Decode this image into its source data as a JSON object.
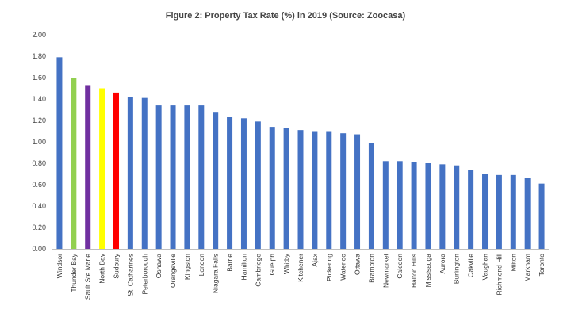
{
  "chart_data": {
    "type": "bar",
    "title": "Figure 2: Property Tax Rate (%) in 2019 (Source: Zoocasa)",
    "xlabel": "",
    "ylabel": "",
    "ylim": [
      0,
      2.0
    ],
    "yticks": [
      "0.00",
      "0.20",
      "0.40",
      "0.60",
      "0.80",
      "1.00",
      "1.20",
      "1.40",
      "1.60",
      "1.80",
      "2.00"
    ],
    "grid": false,
    "legend": "none",
    "categories": [
      "Windsor",
      "Thunder Bay",
      "Sault Ste Marie",
      "North Bay",
      "Sudbury",
      "St. Catharines",
      "Peterborough",
      "Oshawa",
      "Orangeville",
      "Kingston",
      "London",
      "Niagara Falls",
      "Barrie",
      "Hamilton",
      "Cambridge",
      "Guelph",
      "Whitby",
      "Kitchener",
      "Ajax",
      "Pickering",
      "Waterloo",
      "Ottawa",
      "Brampton",
      "Newmarket",
      "Caledon",
      "Halton Hills",
      "Missisauga",
      "Aurora",
      "Burlington",
      "Oakville",
      "Vaughan",
      "Richmond Hill",
      "Milton",
      "Markham",
      "Toronto"
    ],
    "values": [
      1.79,
      1.6,
      1.53,
      1.5,
      1.46,
      1.42,
      1.41,
      1.34,
      1.34,
      1.34,
      1.34,
      1.28,
      1.23,
      1.22,
      1.19,
      1.14,
      1.13,
      1.11,
      1.1,
      1.1,
      1.08,
      1.07,
      0.99,
      0.82,
      0.82,
      0.81,
      0.8,
      0.79,
      0.78,
      0.74,
      0.7,
      0.69,
      0.69,
      0.66,
      0.61
    ],
    "colors": [
      "#4472C4",
      "#92D050",
      "#7030A0",
      "#FFFF00",
      "#FF0000",
      "#4472C4",
      "#4472C4",
      "#4472C4",
      "#4472C4",
      "#4472C4",
      "#4472C4",
      "#4472C4",
      "#4472C4",
      "#4472C4",
      "#4472C4",
      "#4472C4",
      "#4472C4",
      "#4472C4",
      "#4472C4",
      "#4472C4",
      "#4472C4",
      "#4472C4",
      "#4472C4",
      "#4472C4",
      "#4472C4",
      "#4472C4",
      "#4472C4",
      "#4472C4",
      "#4472C4",
      "#4472C4",
      "#4472C4",
      "#4472C4",
      "#4472C4",
      "#4472C4",
      "#4472C4"
    ],
    "axis_color": "#BFBFBF"
  }
}
